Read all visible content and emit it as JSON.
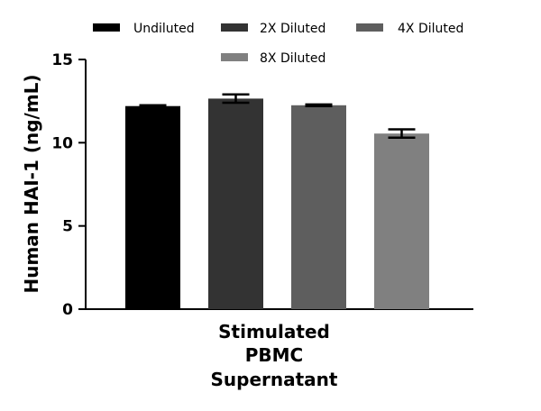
{
  "chart_data": {
    "type": "bar",
    "title": "",
    "xlabel": "",
    "ylabel": "Human HAI-1 (ng/mL)",
    "ylim": [
      0,
      15
    ],
    "yticks": [
      0,
      5,
      10,
      15
    ],
    "category_label_lines": [
      "Stimulated",
      "PBMC",
      "Supernatant"
    ],
    "grid": false,
    "legend_position": "top",
    "series": [
      {
        "name": "Undiluted",
        "color": "#000000",
        "value": 12.2,
        "error": 0.05
      },
      {
        "name": "2X Diluted",
        "color": "#333333",
        "value": 12.65,
        "error": 0.25
      },
      {
        "name": "4X Diluted",
        "color": "#5e5e5e",
        "value": 12.25,
        "error": 0.05
      },
      {
        "name": "8X Diluted",
        "color": "#808080",
        "value": 10.55,
        "error": 0.25
      }
    ]
  }
}
